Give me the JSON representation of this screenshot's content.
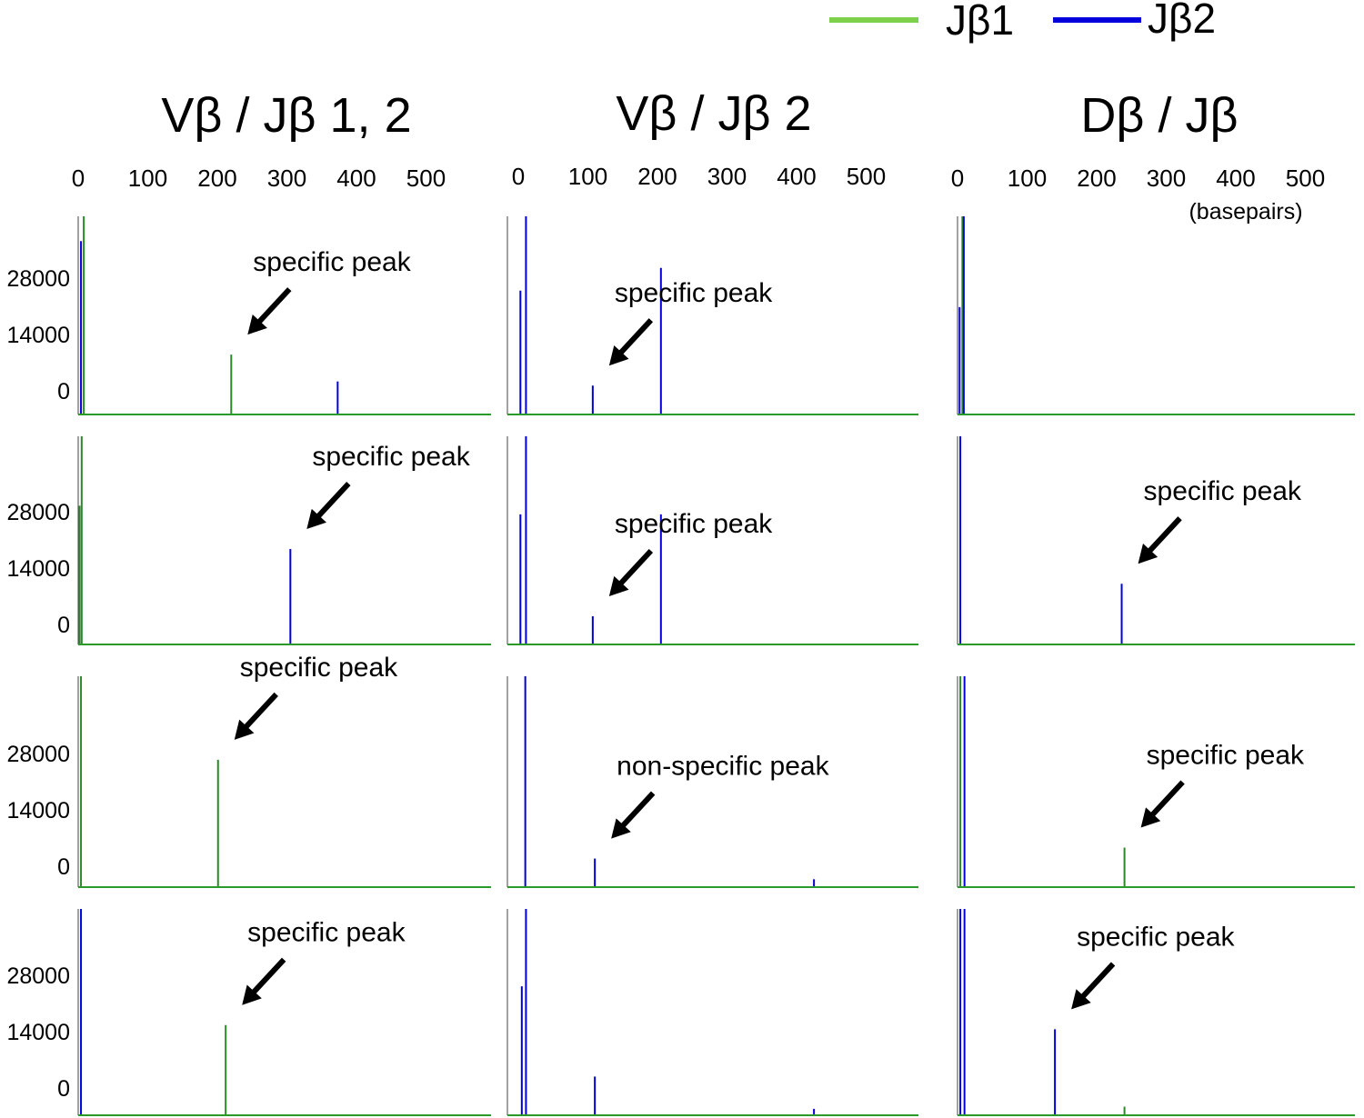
{
  "legend": [
    {
      "label": "Jβ1",
      "color": "#7ed04b"
    },
    {
      "label": "Jβ2",
      "color": "#0000dd"
    }
  ],
  "colors": {
    "jb1": "#2a8a2a",
    "jb2": "#0000dd",
    "baseline": "#2a9a2a",
    "arrow": "#000000"
  },
  "chart_data": {
    "type": "line",
    "x_unit": "(basepairs)",
    "x_ticks": [
      0,
      100,
      200,
      300,
      400,
      500
    ],
    "y_ticks": [
      0,
      14000,
      28000
    ],
    "columns": [
      {
        "title": "Vβ / Jβ 1, 2",
        "panels": [
          {
            "annotation": "specific peak",
            "peaks": [
              {
                "series": "Jβ2",
                "x": 4,
                "y": 42000
              },
              {
                "series": "Jβ1",
                "x": 8,
                "y": 48000
              },
              {
                "series": "Jβ1",
                "x": 220,
                "y": 14500
              },
              {
                "series": "Jβ2",
                "x": 373,
                "y": 8000
              }
            ]
          },
          {
            "annotation": "specific peak",
            "peaks": [
              {
                "series": "Jβ1",
                "x": 2,
                "y": 32000
              },
              {
                "series": "Jβ1",
                "x": 5,
                "y": 48000
              },
              {
                "series": "Jβ2",
                "x": 305,
                "y": 22000
              }
            ]
          },
          {
            "annotation": "specific peak",
            "peaks": [
              {
                "series": "Jβ1",
                "x": 4,
                "y": 48000
              },
              {
                "series": "Jβ1",
                "x": 201,
                "y": 29000
              }
            ]
          },
          {
            "annotation": "specific peak",
            "peaks": [
              {
                "series": "Jβ2",
                "x": 4,
                "y": 48000
              },
              {
                "series": "Jβ1",
                "x": 212,
                "y": 21000
              }
            ]
          }
        ]
      },
      {
        "title": "Vβ / Jβ 2",
        "panels": [
          {
            "annotation": "specific peak",
            "peaks": [
              {
                "series": "Jβ2",
                "x": 3,
                "y": 30000
              },
              {
                "series": "Jβ2",
                "x": 11,
                "y": 48000
              },
              {
                "series": "Jβ2",
                "x": 107,
                "y": 7000
              },
              {
                "series": "Jβ2",
                "x": 205,
                "y": 35500
              }
            ]
          },
          {
            "annotation": "specific peak",
            "peaks": [
              {
                "series": "Jβ2",
                "x": 3,
                "y": 30000
              },
              {
                "series": "Jβ2",
                "x": 11,
                "y": 48000
              },
              {
                "series": "Jβ2",
                "x": 107,
                "y": 6500
              },
              {
                "series": "Jβ2",
                "x": 205,
                "y": 30000
              }
            ]
          },
          {
            "annotation": "non-specific peak",
            "peaks": [
              {
                "series": "Jβ2",
                "x": 10,
                "y": 48000
              },
              {
                "series": "Jβ2",
                "x": 110,
                "y": 6500
              },
              {
                "series": "Jβ2",
                "x": 425,
                "y": 1800
              }
            ]
          },
          {
            "annotation": "",
            "peaks": [
              {
                "series": "Jβ2",
                "x": 5,
                "y": 30000
              },
              {
                "series": "Jβ2",
                "x": 11,
                "y": 48000
              },
              {
                "series": "Jβ2",
                "x": 110,
                "y": 9000
              },
              {
                "series": "Jβ2",
                "x": 425,
                "y": 1500
              }
            ]
          }
        ]
      },
      {
        "title": "Dβ / Jβ",
        "panels": [
          {
            "annotation": "",
            "peaks": [
              {
                "series": "Jβ2",
                "x": 3,
                "y": 26000
              },
              {
                "series": "Jβ1",
                "x": 7,
                "y": 48000
              },
              {
                "series": "Jβ2",
                "x": 9,
                "y": 48000
              }
            ]
          },
          {
            "annotation": "specific peak",
            "peaks": [
              {
                "series": "Jβ2",
                "x": 4,
                "y": 48000
              },
              {
                "series": "Jβ2",
                "x": 236,
                "y": 14000
              }
            ]
          },
          {
            "annotation": "specific peak",
            "peaks": [
              {
                "series": "Jβ1",
                "x": 4,
                "y": 48000
              },
              {
                "series": "Jβ2",
                "x": 10,
                "y": 48000
              },
              {
                "series": "Jβ1",
                "x": 240,
                "y": 9000
              }
            ]
          },
          {
            "annotation": "specific peak",
            "peaks": [
              {
                "series": "Jβ2",
                "x": 4,
                "y": 48000
              },
              {
                "series": "Jβ2",
                "x": 10,
                "y": 48000
              },
              {
                "series": "Jβ2",
                "x": 140,
                "y": 20000
              },
              {
                "series": "Jβ1",
                "x": 240,
                "y": 2000
              }
            ]
          }
        ]
      }
    ]
  }
}
